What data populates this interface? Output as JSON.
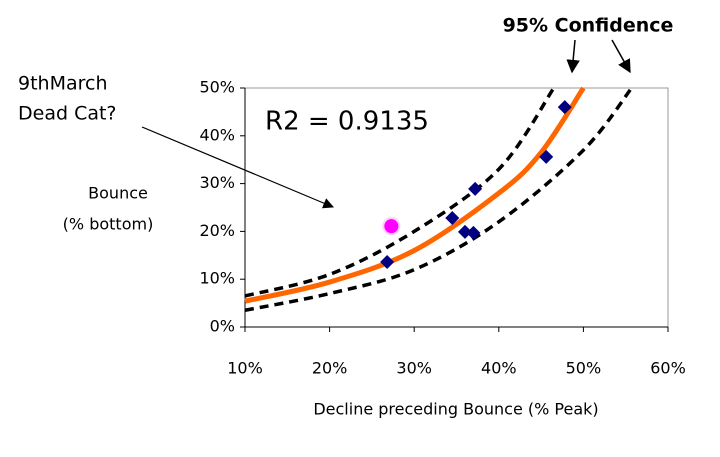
{
  "chart_data": {
    "type": "scatter",
    "title": "95% Confidence",
    "annotation": [
      "9thMarch",
      "Dead Cat?"
    ],
    "r2_label": "R2 = 0.9135",
    "y_label": [
      "Bounce",
      "(% bottom)"
    ],
    "x_label": "Decline preceding Bounce (% Peak)",
    "xlim": [
      10,
      60
    ],
    "ylim": [
      0,
      50
    ],
    "xticks": [
      {
        "value": 10,
        "label": "10%"
      },
      {
        "value": 20,
        "label": "20%"
      },
      {
        "value": 30,
        "label": "30%"
      },
      {
        "value": 40,
        "label": "40%"
      },
      {
        "value": 50,
        "label": "50%"
      },
      {
        "value": 60,
        "label": "60%"
      }
    ],
    "yticks": [
      {
        "value": 0,
        "label": "0%"
      },
      {
        "value": 10,
        "label": "10%"
      },
      {
        "value": 20,
        "label": "20%"
      },
      {
        "value": 30,
        "label": "30%"
      },
      {
        "value": 40,
        "label": "40%"
      },
      {
        "value": 50,
        "label": "50%"
      }
    ],
    "series": [
      {
        "mode": "markers",
        "marker": "diamond",
        "color": "#000080",
        "x": [
          26.8,
          34.5,
          36.0,
          37.2,
          37.0,
          45.6,
          47.8
        ],
        "values": [
          13.6,
          22.8,
          19.9,
          28.9,
          19.7,
          35.6,
          46.0
        ]
      },
      {
        "mode": "markers",
        "marker": "circle",
        "color": "#ff00ff",
        "x": [
          27.3
        ],
        "values": [
          21.1
        ]
      },
      {
        "mode": "line",
        "dash": false,
        "color": "#ff6600",
        "x": [
          10,
          20,
          30,
          40,
          45,
          50
        ],
        "values": [
          5.4,
          9.4,
          16.0,
          28.0,
          36.5,
          50
        ]
      },
      {
        "mode": "line",
        "dash": true,
        "color": "#000000",
        "x": [
          10,
          20,
          30,
          40,
          46.5
        ],
        "values": [
          6.5,
          11.0,
          20.0,
          33.0,
          50
        ]
      },
      {
        "mode": "line",
        "dash": true,
        "color": "#000000",
        "x": [
          10,
          20,
          30,
          40,
          50,
          55.7
        ],
        "values": [
          3.5,
          7.0,
          12.0,
          22.0,
          37.0,
          50
        ]
      }
    ]
  }
}
